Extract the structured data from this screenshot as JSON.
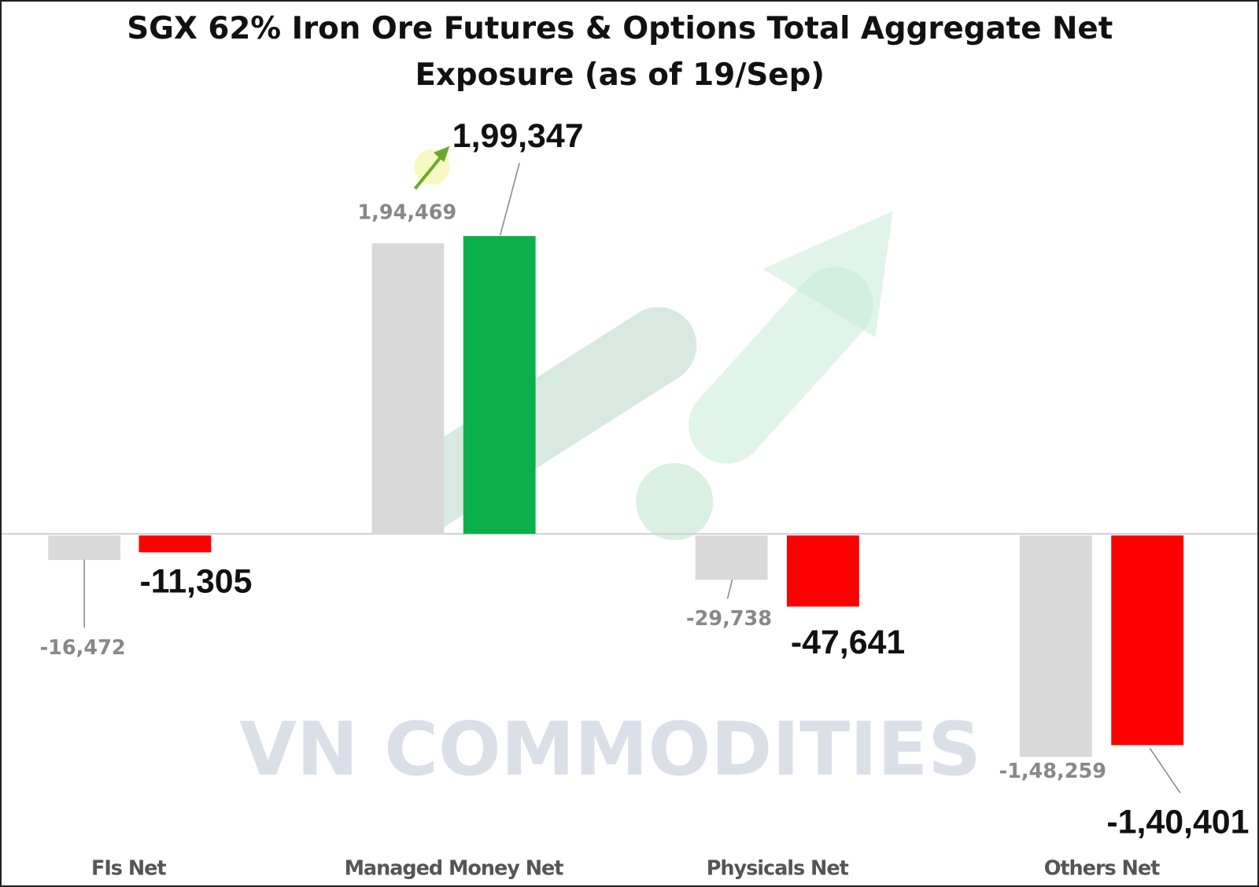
{
  "chart_data": {
    "type": "bar",
    "title": "SGX 62% Iron Ore Futures & Options Total Aggregate Net Exposure (as of 19/Sep)",
    "title_lines": [
      "SGX 62% Iron Ore Futures & Options Total Aggregate Net",
      "Exposure (as of 19/Sep)"
    ],
    "categories": [
      "FIs Net",
      "Managed Money Net",
      "Physicals Net",
      "Others Net"
    ],
    "series": [
      {
        "values": [
          -16472,
          194469,
          -29738,
          -148259
        ],
        "labels": [
          "-16,472",
          "1,94,469",
          "-29,738",
          "-1,48,259"
        ],
        "color": "#d9d9d9"
      },
      {
        "values": [
          -11305,
          199347,
          -47641,
          -140401
        ],
        "labels": [
          "-11,305",
          "1,99,347",
          "-47,641",
          "-1,40,401"
        ],
        "colors": [
          "#ff0000",
          "#0bb04b",
          "#ff0000",
          "#ff0000"
        ]
      }
    ],
    "xlabel": "",
    "ylabel": "",
    "grid": false,
    "legend": "none"
  },
  "watermark": "VN COMMODITIES"
}
